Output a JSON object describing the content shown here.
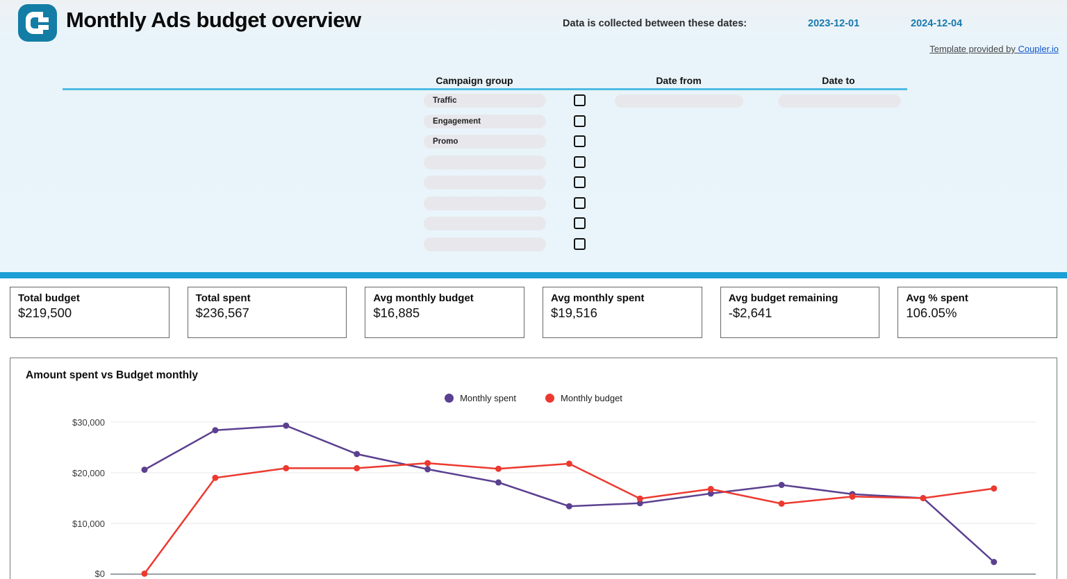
{
  "header": {
    "title": "Monthly Ads budget overview",
    "collected_label": "Data is collected between these dates:",
    "date_from": "2023-12-01",
    "date_to": "2024-12-04",
    "template_prefix": "Template provided by ",
    "template_link": "Coupler.io"
  },
  "filters": {
    "columns": [
      "Campaign group",
      "Date from",
      "Date to"
    ],
    "campaign_groups": [
      "Traffic",
      "Engagement",
      "Promo",
      "",
      "",
      "",
      "",
      ""
    ]
  },
  "kpis": [
    {
      "label": "Total budget",
      "value": "$219,500"
    },
    {
      "label": "Total spent",
      "value": "$236,567"
    },
    {
      "label": "Avg monthly budget",
      "value": "$16,885"
    },
    {
      "label": "Avg monthly spent",
      "value": "$19,516"
    },
    {
      "label": "Avg budget remaining",
      "value": "-$2,641"
    },
    {
      "label": "Avg % spent",
      "value": "106.05%"
    }
  ],
  "chart": {
    "title": "Amount spent vs Budget monthly"
  },
  "chart_data": {
    "type": "line",
    "title": "Amount spent vs Budget monthly",
    "x": [
      1,
      2,
      3,
      4,
      5,
      6,
      7,
      8,
      9,
      10,
      11,
      12,
      13
    ],
    "x_axis_labels_visible": false,
    "series": [
      {
        "name": "Monthly spent",
        "color": "#5B4090",
        "values": [
          20600,
          28400,
          29300,
          23700,
          20700,
          18100,
          13400,
          14000,
          15900,
          17600,
          15800,
          15000,
          2400
        ]
      },
      {
        "name": "Monthly budget",
        "color": "#EC392F",
        "values": [
          100,
          19000,
          20900,
          20900,
          21900,
          20800,
          21800,
          14900,
          16800,
          13900,
          15300,
          15000,
          16900
        ]
      }
    ],
    "ylim": [
      0,
      30000
    ],
    "ytick_labels": [
      "$0",
      "$10,000",
      "$20,000",
      "$30,000"
    ],
    "grid": true,
    "legend_position": "top-center"
  },
  "colors": {
    "brand_teal": "#137DA5",
    "divider": "#1B9FD4",
    "table_rule": "#4FBCE3",
    "date_value": "#1878AD",
    "link": "#1155CC"
  }
}
